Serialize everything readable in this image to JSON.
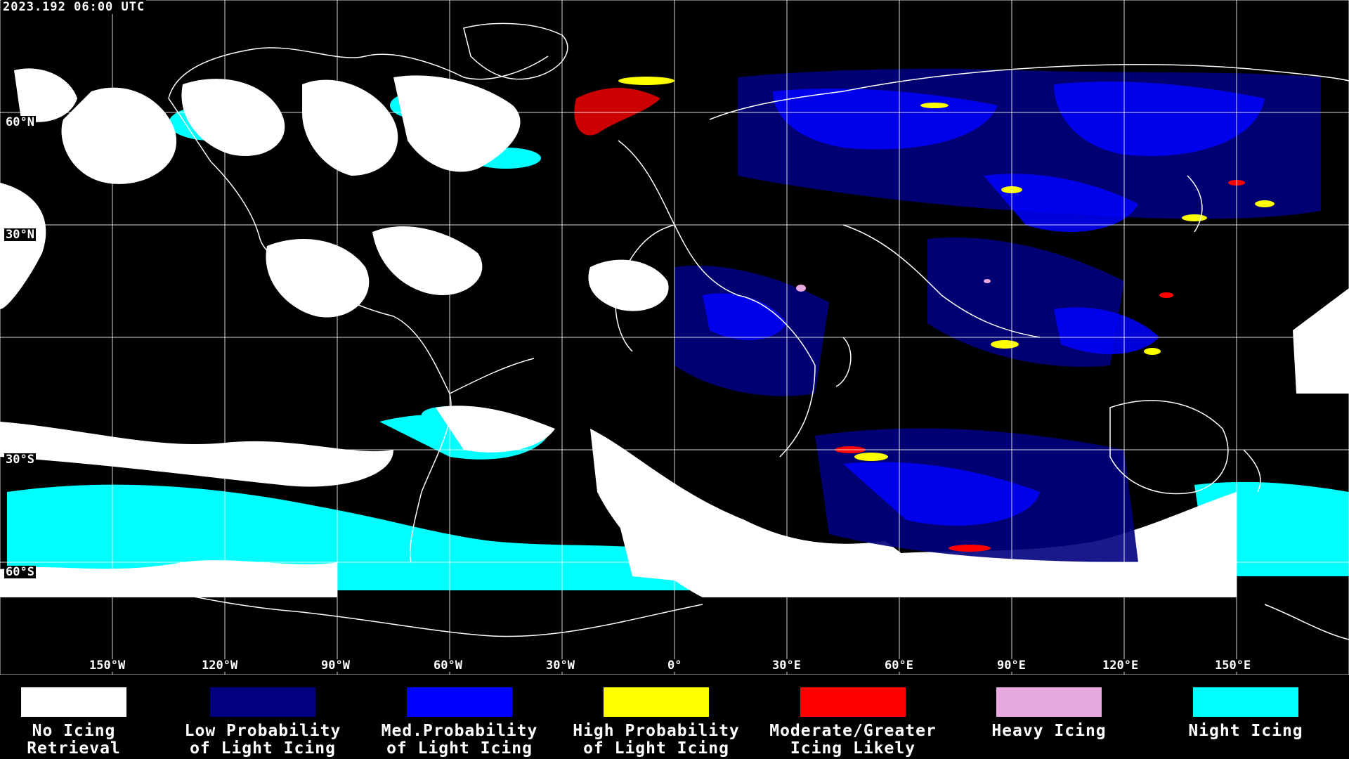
{
  "header": {
    "timestamp": "2023.192 06:00 UTC"
  },
  "map": {
    "lat_labels": [
      "60°N",
      "30°N",
      "30°S",
      "60°S"
    ],
    "lon_labels": [
      "150°W",
      "120°W",
      "90°W",
      "60°W",
      "30°W",
      "0°",
      "30°E",
      "60°E",
      "90°E",
      "120°E",
      "150°E"
    ]
  },
  "legend": {
    "items": [
      {
        "label": "No Icing\nRetrieval",
        "color": "#ffffff"
      },
      {
        "label": "Low Probability\nof Light Icing",
        "color": "#000080"
      },
      {
        "label": "Med.Probability\nof Light Icing",
        "color": "#0000ff"
      },
      {
        "label": "High Probability\nof Light Icing",
        "color": "#ffff00"
      },
      {
        "label": "Moderate/Greater\nIcing Likely",
        "color": "#ff0000"
      },
      {
        "label": "Heavy Icing",
        "color": "#e8a8e0"
      },
      {
        "label": "Night Icing",
        "color": "#00ffff"
      }
    ]
  }
}
